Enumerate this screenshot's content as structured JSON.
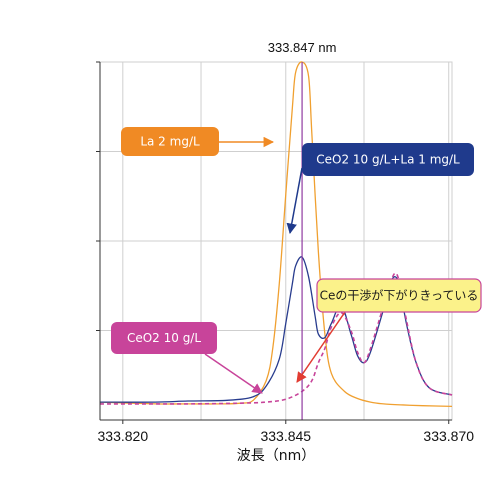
{
  "chart_data": {
    "type": "line",
    "xlabel": "波長（nm）",
    "ylabel": "",
    "xlim": [
      333.8165,
      333.8705
    ],
    "ylim": [
      0,
      100
    ],
    "x_ticks": [
      333.82,
      333.845,
      333.87
    ],
    "x_tick_labels": [
      "333.820",
      "333.845",
      "333.870"
    ],
    "x_gridlines": [
      333.82,
      333.832,
      333.845,
      333.857,
      333.87
    ],
    "y_gridlines": [
      25,
      50,
      75
    ],
    "grid": true,
    "marker_line": {
      "x": 333.8475,
      "label": "333.847 nm",
      "color": "#8f3aa0"
    },
    "series": [
      {
        "name": "La 2 mg/L",
        "color": "#f0a030",
        "style": "solid",
        "x": [
          333.8165,
          333.825,
          333.83,
          333.835,
          333.838,
          333.84,
          333.842,
          333.843,
          333.844,
          333.845,
          333.846,
          333.8465,
          333.8475,
          333.8485,
          333.849,
          333.85,
          333.851,
          333.852,
          333.854,
          333.856,
          333.858,
          333.86,
          333.863,
          333.866,
          333.8705
        ],
        "y": [
          5,
          4.5,
          4.5,
          4.5,
          4.7,
          5.5,
          11,
          20,
          38,
          63,
          87,
          97,
          100,
          96,
          80,
          47,
          24,
          13,
          8,
          6,
          5,
          4.5,
          4.2,
          4,
          3.8
        ]
      },
      {
        "name": "CeO2 10 g/L+La 1 mg/L",
        "color": "#283c8e",
        "style": "solid",
        "x": [
          333.8165,
          333.825,
          333.83,
          333.836,
          333.84,
          333.842,
          333.844,
          333.845,
          333.846,
          333.8465,
          333.8475,
          333.8485,
          333.8495,
          333.85,
          333.851,
          333.852,
          333.8535,
          333.855,
          333.856,
          333.857,
          333.858,
          333.86,
          333.861,
          333.8618,
          333.8625,
          333.8635,
          333.865,
          333.867,
          333.8705
        ],
        "y": [
          5,
          5,
          5.3,
          5.5,
          6.5,
          9.5,
          17,
          27,
          38,
          43,
          45.5,
          40,
          29,
          24,
          23,
          27,
          32,
          24,
          18,
          16,
          19,
          31,
          38,
          40,
          37,
          27,
          16,
          9,
          7
        ]
      },
      {
        "name": "CeO2 10 g/L",
        "color": "#c8449a",
        "style": "dashed",
        "x": [
          333.8165,
          333.83,
          333.838,
          333.842,
          333.845,
          333.8475,
          333.849,
          333.85,
          333.851,
          333.852,
          333.8535,
          333.855,
          333.856,
          333.857,
          333.858,
          333.86,
          333.861,
          333.8618,
          333.8625,
          333.8635,
          333.865,
          333.867,
          333.8705
        ],
        "y": [
          4.5,
          4.5,
          4.7,
          5,
          5.8,
          8,
          11,
          16,
          20,
          26,
          30,
          25,
          19,
          16,
          20,
          32,
          38,
          41,
          38,
          28,
          16,
          9,
          7
        ]
      }
    ],
    "annotations": [
      {
        "text": "La 2 mg/L",
        "fill": "#f08a24",
        "text_color": "#ffffff",
        "target_series": "La 2 mg/L"
      },
      {
        "text": "CeO2 10 g/L+La 1 mg/L",
        "fill": "#1f3a8c",
        "text_color": "#ffffff",
        "target_series": "CeO2 10 g/L+La 1 mg/L"
      },
      {
        "text": "CeO2 10 g/L",
        "fill": "#c8449a",
        "text_color": "#ffffff",
        "target_series": "CeO2 10 g/L"
      },
      {
        "text": "Ceの干渉が下がりきっている",
        "fill": "#fbf28a",
        "text_color": "#1a1a1a",
        "border": "#c8449a",
        "arrow_color": "#e23c32"
      }
    ]
  }
}
